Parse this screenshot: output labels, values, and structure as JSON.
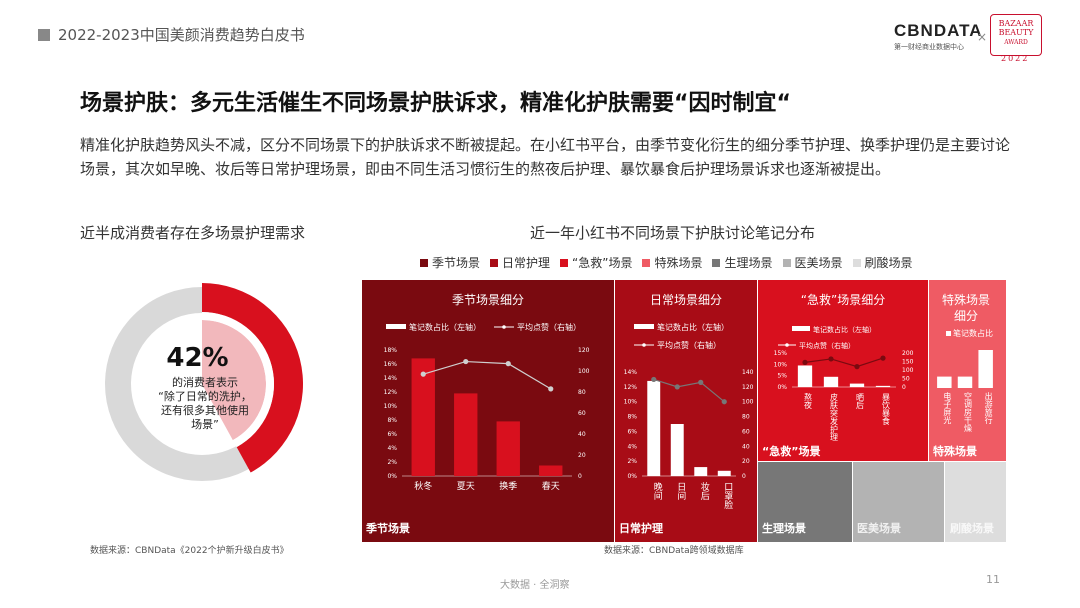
{
  "header": {
    "doc_title": "2022-2023中国美颜消费趋势白皮书",
    "logo": "CBNDATA",
    "logo_sub": "第一财经商业数据中心",
    "logo_x": "×",
    "partner": "BAZAAR BEAUTY",
    "partner_year": "2022"
  },
  "title": "场景护肤：多元生活催生不同场景护肤诉求，精准化护肤需要“因时制宜“",
  "paragraph": "精准化护肤趋势风头不减，区分不同场景下的护肤诉求不断被提起。在小红书平台，由季节变化衍生的细分季节护理、换季护理仍是主要讨论场景，其次如早晚、妆后等日常护理场景，即由不同生活习惯衍生的熬夜后护理、暴饮暴食后护理场景诉求也逐渐被提出。",
  "left_subtitle": "近半成消费者存在多场景护理需求",
  "right_subtitle": "近一年小红书不同场景下护肤讨论笔记分布",
  "donut": {
    "percent_label": "42%",
    "value": 42,
    "line1": "的消费者表示",
    "line2": "“除了日常的洗护，",
    "line3": "还有很多其他使用",
    "line4": "场景”",
    "color_main": "#d8101e",
    "color_light": "#f2b8bc",
    "color_rest": "#d9d9d9"
  },
  "source_left": "数据来源：CBNData《2022个护新升级白皮书》",
  "source_right": "数据来源：CBNData跨领域数据库",
  "legend": [
    {
      "label": "季节场景",
      "color": "#7a0a10"
    },
    {
      "label": "日常护理",
      "color": "#a80c16"
    },
    {
      "label": "“急救”场景",
      "color": "#d8101e"
    },
    {
      "label": "特殊场景",
      "color": "#ef5b64"
    },
    {
      "label": "生理场景",
      "color": "#777777"
    },
    {
      "label": "医美场景",
      "color": "#b3b3b3"
    },
    {
      "label": "刷酸场景",
      "color": "#dddddd"
    }
  ],
  "chart_data": [
    {
      "type": "bar",
      "title": "季节场景细分",
      "block_label": "季节场景",
      "bar_legend": "笔记数占比（左轴）",
      "line_legend": "平均点赞（右轴）",
      "categories": [
        "秋冬",
        "夏天",
        "换季",
        "春天"
      ],
      "values": [
        16.8,
        11.8,
        7.8,
        1.5
      ],
      "line_values": [
        97,
        109,
        107,
        83
      ],
      "ylim": [
        0,
        18
      ],
      "y_ticks": [
        "0%",
        "2%",
        "4%",
        "6%",
        "8%",
        "10%",
        "12%",
        "14%",
        "16%",
        "18%"
      ],
      "ylim_right": [
        0,
        120
      ],
      "y2_ticks": [
        "0",
        "20",
        "40",
        "60",
        "80",
        "100",
        "120"
      ]
    },
    {
      "type": "bar",
      "title": "日常场景细分",
      "block_label": "日常护理",
      "bar_legend": "笔记数占比（左轴）",
      "line_legend": "平均点赞（右轴）",
      "categories": [
        "晚间",
        "日间",
        "妆后",
        "口罩脸"
      ],
      "values": [
        12.8,
        7.0,
        1.2,
        0.7
      ],
      "line_values": [
        130,
        120,
        126,
        100
      ],
      "ylim": [
        0,
        14
      ],
      "y_ticks": [
        "0%",
        "2%",
        "4%",
        "6%",
        "8%",
        "10%",
        "12%",
        "14%"
      ],
      "ylim_right": [
        0,
        140
      ],
      "y2_ticks": [
        "0",
        "20",
        "40",
        "60",
        "80",
        "100",
        "120",
        "140"
      ]
    },
    {
      "type": "bar",
      "title": "“急救”场景细分",
      "block_label": "“急救”场景",
      "bar_legend": "笔记数占比（左轴）",
      "line_legend": "平均点赞（右轴）",
      "categories": [
        "熬夜",
        "皮肤突发护理",
        "晒后",
        "暴饮暴食"
      ],
      "values": [
        9.5,
        4.5,
        1.5,
        0.5
      ],
      "line_values": [
        145,
        165,
        120,
        170
      ],
      "ylim": [
        0,
        15
      ],
      "y_ticks": [
        "0%",
        "5%",
        "10%",
        "15%"
      ],
      "ylim_right": [
        0,
        200
      ],
      "y2_ticks": [
        "0",
        "50",
        "100",
        "150",
        "200"
      ]
    },
    {
      "type": "bar",
      "title": "特殊场景细分",
      "block_label": "特殊场景",
      "bar_legend": "笔记数占比",
      "categories": [
        "电子屏光",
        "空调房干燥",
        "出游旅行"
      ],
      "values": [
        1.5,
        1.5,
        5.0
      ],
      "ylim": [
        0,
        5
      ]
    },
    {
      "type": "table",
      "block_labels": [
        "生理场景",
        "医美场景",
        "刷酸场景"
      ]
    }
  ],
  "footer": "大数据 · 全洞察",
  "page_number": "11"
}
